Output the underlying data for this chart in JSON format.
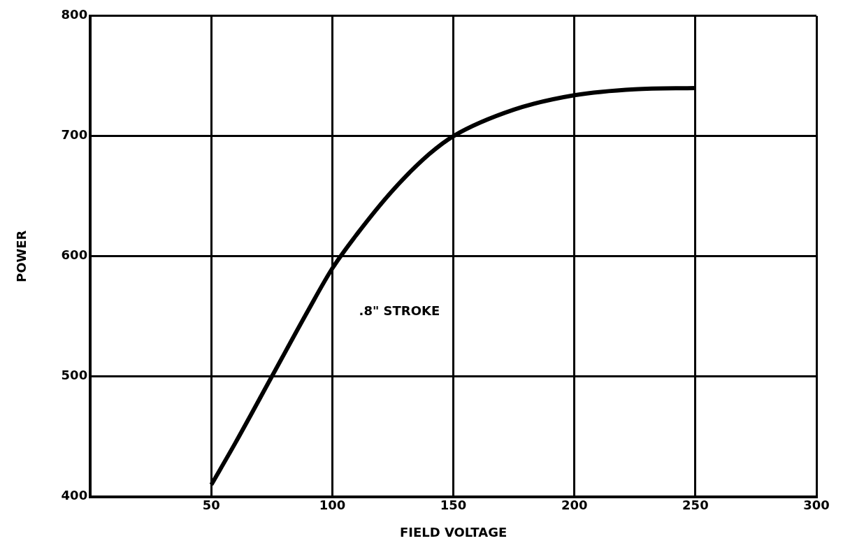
{
  "chart_data": {
    "type": "line",
    "xlabel": "FIELD VOLTAGE",
    "ylabel": "POWER",
    "x": [
      50,
      60,
      75,
      90,
      100,
      110,
      125,
      140,
      150,
      175,
      200,
      225,
      250
    ],
    "series": [
      {
        "color": "#000000",
        "values": [
          410,
          445,
          500,
          555,
          590,
          618,
          655,
          685,
          700,
          722,
          734,
          739,
          740
        ]
      }
    ],
    "xlim": [
      0,
      300
    ],
    "xticks": [
      50,
      100,
      150,
      200,
      250,
      300
    ],
    "ylim": [
      400,
      800
    ],
    "yticks": [
      400,
      500,
      600,
      700,
      800
    ],
    "grid": true,
    "legend": false,
    "marker": "none",
    "line_style": "solid",
    "annotations": [
      ".8\" STROKE"
    ]
  }
}
